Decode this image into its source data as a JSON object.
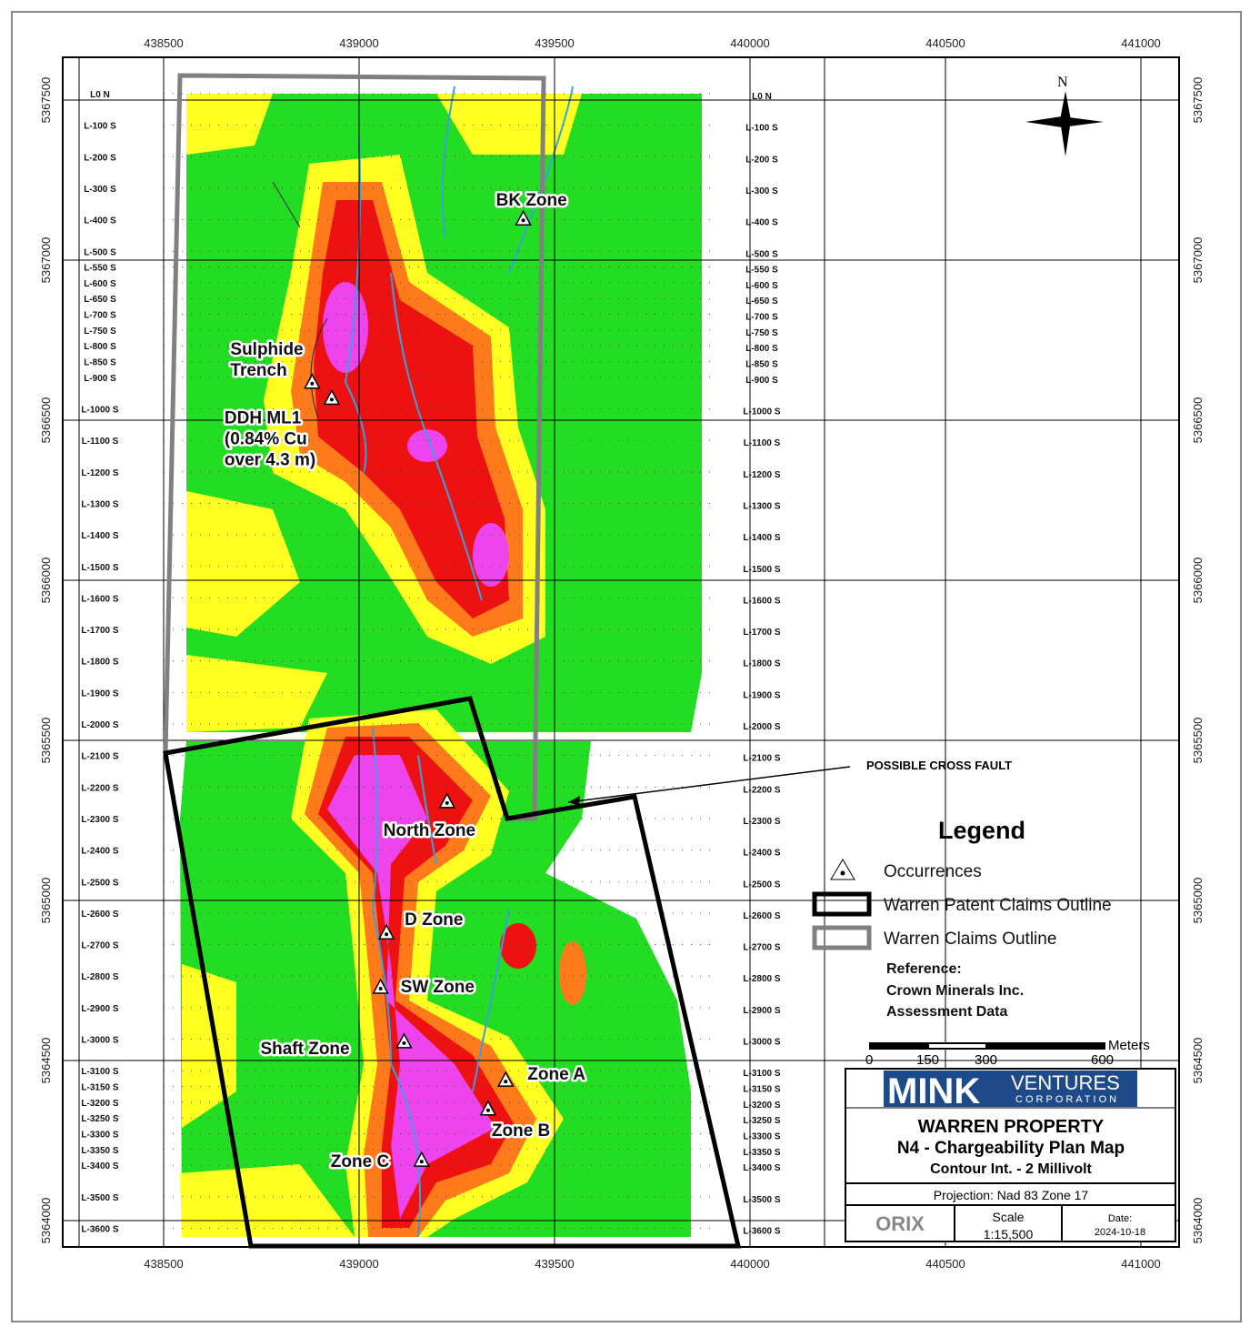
{
  "map": {
    "x_ticks": [
      438500,
      439000,
      439500,
      440000,
      440500,
      441000
    ],
    "y_ticks": [
      5367500,
      5367000,
      5366500,
      5366000,
      5365500,
      5365000,
      5364500,
      5364000
    ],
    "survey_lines": [
      "L0 N",
      "L-100 S",
      "L-200 S",
      "L-300 S",
      "L-400 S",
      "L-500 S",
      "L-550 S",
      "L-600 S",
      "L-650 S",
      "L-700 S",
      "L-750 S",
      "L-800 S",
      "L-850 S",
      "L-900 S",
      "L-1000 S",
      "L-1100 S",
      "L-1200 S",
      "L-1300 S",
      "L-1400 S",
      "L-1500 S",
      "L-1600 S",
      "L-1700 S",
      "L-1800 S",
      "L-1900 S",
      "L-2000 S",
      "L-2100 S",
      "L-2200 S",
      "L-2300 S",
      "L-2400 S",
      "L-2500 S",
      "L-2600 S",
      "L-2700 S",
      "L-2800 S",
      "L-2900 S",
      "L-3000 S",
      "L-3100 S",
      "L-3150 S",
      "L-3200 S",
      "L-3250 S",
      "L-3300 S",
      "L-3350 S",
      "L-3400 S",
      "L-3500 S",
      "L-3600 S"
    ],
    "survey_line_offsets_m": [
      0,
      100,
      200,
      300,
      400,
      500,
      550,
      600,
      650,
      700,
      750,
      800,
      850,
      900,
      1000,
      1100,
      1200,
      1300,
      1400,
      1500,
      1600,
      1700,
      1800,
      1900,
      2000,
      2100,
      2200,
      2300,
      2400,
      2500,
      2600,
      2700,
      2800,
      2900,
      3000,
      3100,
      3150,
      3200,
      3250,
      3300,
      3350,
      3400,
      3500,
      3600
    ],
    "colors": {
      "low": "#22dd22",
      "mid": "#ffff22",
      "high1": "#ff7a1a",
      "high2": "#ee1111",
      "peak": "#ee44ee",
      "fault": "#3aa0e0",
      "patent": "#000000",
      "claims": "#808080"
    },
    "north_label": "N",
    "fault_label": "POSSIBLE CROSS FAULT",
    "occurrences": [
      {
        "label": "BK Zone",
        "x": 439420,
        "y": 5367130
      },
      {
        "label": "Sulphide Trench",
        "x": 438880,
        "y": 5366620
      },
      {
        "label": "DDH ML1 (0.84% Cu over 4.3 m)",
        "x": 438930,
        "y": 5366570
      },
      {
        "label": "North Zone",
        "x": 439225,
        "y": 5365310
      },
      {
        "label": "D Zone",
        "x": 439070,
        "y": 5364900
      },
      {
        "label": "SW Zone",
        "x": 439055,
        "y": 5364730
      },
      {
        "label": "Shaft Zone",
        "x": 439115,
        "y": 5364560
      },
      {
        "label": "Zone A",
        "x": 439375,
        "y": 5364440
      },
      {
        "label": "Zone B",
        "x": 439330,
        "y": 5364350
      },
      {
        "label": "Zone C",
        "x": 439160,
        "y": 5364190
      }
    ],
    "label_lines": {
      "Sulphide Trench": [
        "Sulphide",
        "Trench"
      ],
      "DDH ML1 (0.84% Cu over 4.3 m)": [
        "DDH ML1",
        "(0.84% Cu",
        "over 4.3 m)"
      ]
    }
  },
  "legend": {
    "title": "Legend",
    "items": [
      "Occurrences",
      "Warren Patent Claims Outline",
      "Warren Claims Outline"
    ],
    "reference_lines": [
      "Reference:",
      "Crown Minerals Inc.",
      "Assessment Data"
    ]
  },
  "scalebar": {
    "labels": [
      "0",
      "150",
      "300",
      "600"
    ],
    "unit": "Meters"
  },
  "titleblock": {
    "logo_main": "MINK",
    "logo_sub1": "VENTURES",
    "logo_sub2": "CORPORATION",
    "title": "WARREN PROPERTY",
    "subtitle": "N4 - Chargeability Plan Map",
    "contour": "Contour Int. - 2 Millivolt",
    "projection": "Projection: Nad 83 Zone 17",
    "scale_label": "Scale",
    "scale_value": "1:15,500",
    "date_label": "Date:",
    "date_value": "2024-10-18",
    "company_logo": "ORIX"
  }
}
